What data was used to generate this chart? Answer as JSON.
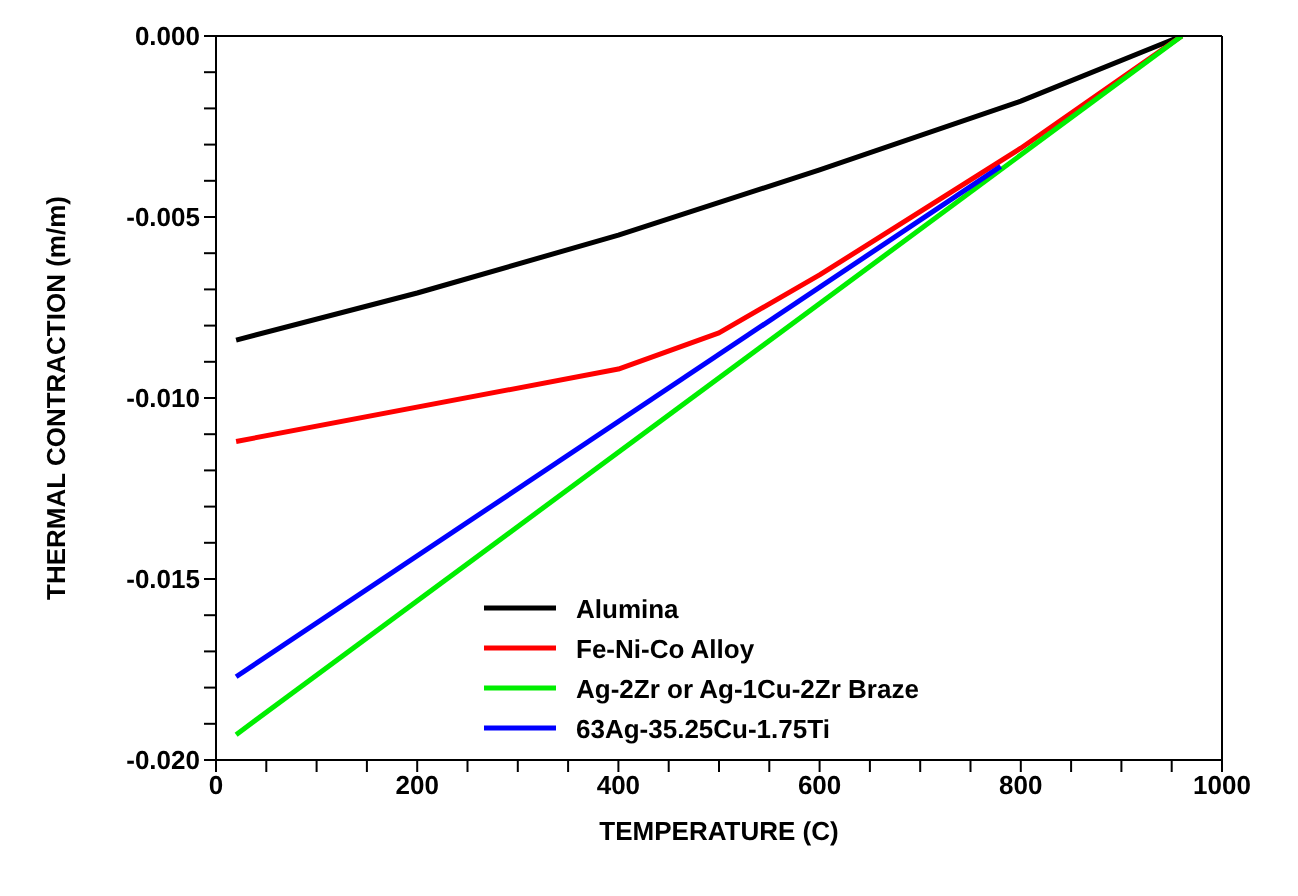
{
  "chart_data": {
    "type": "line",
    "xlabel": "TEMPERATURE  (C)",
    "ylabel": "THERMAL CONTRACTION  (m/m)",
    "xlim": [
      0,
      1000
    ],
    "ylim": [
      -0.02,
      0
    ],
    "xticks": [
      0,
      {
        "value": 50,
        "label": null
      },
      {
        "value": 100,
        "label": null
      },
      {
        "value": 150,
        "label": null
      },
      200,
      {
        "value": 250,
        "label": null
      },
      {
        "value": 300,
        "label": null
      },
      {
        "value": 350,
        "label": null
      },
      400,
      {
        "value": 450,
        "label": null
      },
      {
        "value": 500,
        "label": null
      },
      {
        "value": 550,
        "label": null
      },
      600,
      {
        "value": 650,
        "label": null
      },
      {
        "value": 700,
        "label": null
      },
      {
        "value": 750,
        "label": null
      },
      800,
      {
        "value": 850,
        "label": null
      },
      {
        "value": 900,
        "label": null
      },
      {
        "value": 950,
        "label": null
      },
      1000
    ],
    "yticks": [
      {
        "value": -0.02,
        "label": "-0.020"
      },
      {
        "value": -0.019,
        "label": null
      },
      {
        "value": -0.018,
        "label": null
      },
      {
        "value": -0.017,
        "label": null
      },
      {
        "value": -0.016,
        "label": null
      },
      {
        "value": -0.015,
        "label": "-0.015"
      },
      {
        "value": -0.014,
        "label": null
      },
      {
        "value": -0.013,
        "label": null
      },
      {
        "value": -0.012,
        "label": null
      },
      {
        "value": -0.011,
        "label": null
      },
      {
        "value": -0.01,
        "label": "-0.010"
      },
      {
        "value": -0.009,
        "label": null
      },
      {
        "value": -0.008,
        "label": null
      },
      {
        "value": -0.007,
        "label": null
      },
      {
        "value": -0.006,
        "label": null
      },
      {
        "value": -0.005,
        "label": "-0.005"
      },
      {
        "value": -0.004,
        "label": null
      },
      {
        "value": -0.003,
        "label": null
      },
      {
        "value": -0.002,
        "label": null
      },
      {
        "value": -0.001,
        "label": null
      },
      {
        "value": 0,
        "label": "0.000"
      }
    ],
    "grid": false,
    "legend": "bottom",
    "marker": "none",
    "line_style": "solid",
    "series": [
      {
        "name": "Alumina",
        "color": "#000000",
        "x": [
          20,
          200,
          400,
          600,
          800,
          960
        ],
        "values": [
          -0.0084,
          -0.0071,
          -0.0055,
          -0.0037,
          -0.0018,
          0
        ]
      },
      {
        "name": "Fe-Ni-Co Alloy",
        "color": "#ff0000",
        "x": [
          20,
          400,
          500,
          600,
          800,
          960
        ],
        "values": [
          -0.0112,
          -0.0092,
          -0.0082,
          -0.0066,
          -0.0031,
          0
        ]
      },
      {
        "name": "Ag-2Zr or Ag-1Cu-2Zr Braze",
        "color": "#00ee00",
        "x": [
          20,
          960
        ],
        "values": [
          -0.0193,
          0
        ]
      },
      {
        "name": "63Ag-35.25Cu-1.75Ti",
        "color": "#0000ff",
        "x": [
          20,
          780
        ],
        "values": [
          -0.0177,
          -0.0036
        ]
      }
    ]
  }
}
